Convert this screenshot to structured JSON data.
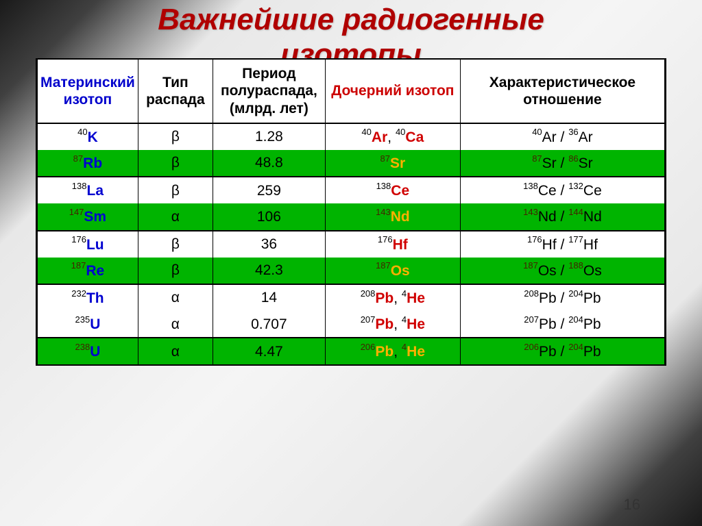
{
  "title_line1": "Важнейшие радиогенные",
  "title_line2": "изотопы",
  "page_number": "16",
  "headers": {
    "parent": "Материнский изотоп",
    "decay": "Тип распада",
    "halflife": "Период полураспада, (млрд. лет)",
    "daughter": "Дочерний изотоп",
    "ratio": "Характеристическое отношение"
  },
  "colors": {
    "green_row": "#00b400",
    "title_color": "#b00000",
    "parent_color": "#0000d0",
    "daughter_color": "#d00000",
    "daughter_on_green": "#ffb000"
  },
  "rows": [
    {
      "green": false,
      "pmass": "40",
      "pel": "K",
      "decay": "β",
      "half": "1.28",
      "daughters": [
        {
          "m": "40",
          "e": "Ar"
        },
        {
          "m": "40",
          "e": "Ca"
        }
      ],
      "ratio": [
        {
          "m": "40",
          "e": "Ar"
        },
        {
          "m": "36",
          "e": "Ar"
        }
      ],
      "sep": false
    },
    {
      "green": true,
      "pmass": "87",
      "pel": "Rb",
      "decay": "β",
      "half": "48.8",
      "daughters": [
        {
          "m": "87",
          "e": "Sr"
        }
      ],
      "ratio": [
        {
          "m": "87",
          "e": "Sr"
        },
        {
          "m": "86",
          "e": "Sr"
        }
      ],
      "sep": false
    },
    {
      "green": false,
      "pmass": "138",
      "pel": "La",
      "decay": "β",
      "half": "259",
      "daughters": [
        {
          "m": "138",
          "e": "Ce"
        }
      ],
      "ratio": [
        {
          "m": "138",
          "e": "Ce"
        },
        {
          "m": "132",
          "e": "Ce"
        }
      ],
      "sep": true
    },
    {
      "green": true,
      "pmass": "147",
      "pel": "Sm",
      "decay": "α",
      "half": "106",
      "daughters": [
        {
          "m": "143",
          "e": "Nd"
        }
      ],
      "ratio": [
        {
          "m": "143",
          "e": "Nd"
        },
        {
          "m": "144",
          "e": "Nd"
        }
      ],
      "sep": false
    },
    {
      "green": false,
      "pmass": "176",
      "pel": "Lu",
      "decay": "β",
      "half": "36",
      "daughters": [
        {
          "m": "176",
          "e": "Hf"
        }
      ],
      "ratio": [
        {
          "m": "176",
          "e": "Hf"
        },
        {
          "m": "177",
          "e": "Hf"
        }
      ],
      "sep": true
    },
    {
      "green": true,
      "pmass": "187",
      "pel": "Re",
      "decay": "β",
      "half": "42.3",
      "daughters": [
        {
          "m": "187",
          "e": "Os"
        }
      ],
      "ratio": [
        {
          "m": "187",
          "e": "Os"
        },
        {
          "m": "188",
          "e": "Os"
        }
      ],
      "sep": false
    },
    {
      "green": false,
      "pmass": "232",
      "pel": "Th",
      "decay": "α",
      "half": "14",
      "daughters": [
        {
          "m": "208",
          "e": "Pb"
        },
        {
          "m": "4",
          "e": "He"
        }
      ],
      "ratio": [
        {
          "m": "208",
          "e": "Pb"
        },
        {
          "m": "204",
          "e": "Pb"
        }
      ],
      "sep": true
    },
    {
      "green": false,
      "pmass": "235",
      "pel": "U",
      "decay": "α",
      "half": "0.707",
      "daughters": [
        {
          "m": "207",
          "e": "Pb"
        },
        {
          "m": "4",
          "e": "He"
        }
      ],
      "ratio": [
        {
          "m": "207",
          "e": "Pb"
        },
        {
          "m": "204",
          "e": "Pb"
        }
      ],
      "sep": false
    },
    {
      "green": true,
      "pmass": "238",
      "pel": "U",
      "decay": "α",
      "half": "4.47",
      "daughters": [
        {
          "m": "206",
          "e": "Pb"
        },
        {
          "m": "4",
          "e": "He"
        }
      ],
      "ratio": [
        {
          "m": "206",
          "e": "Pb"
        },
        {
          "m": "204",
          "e": "Pb"
        }
      ],
      "sep": true
    }
  ]
}
